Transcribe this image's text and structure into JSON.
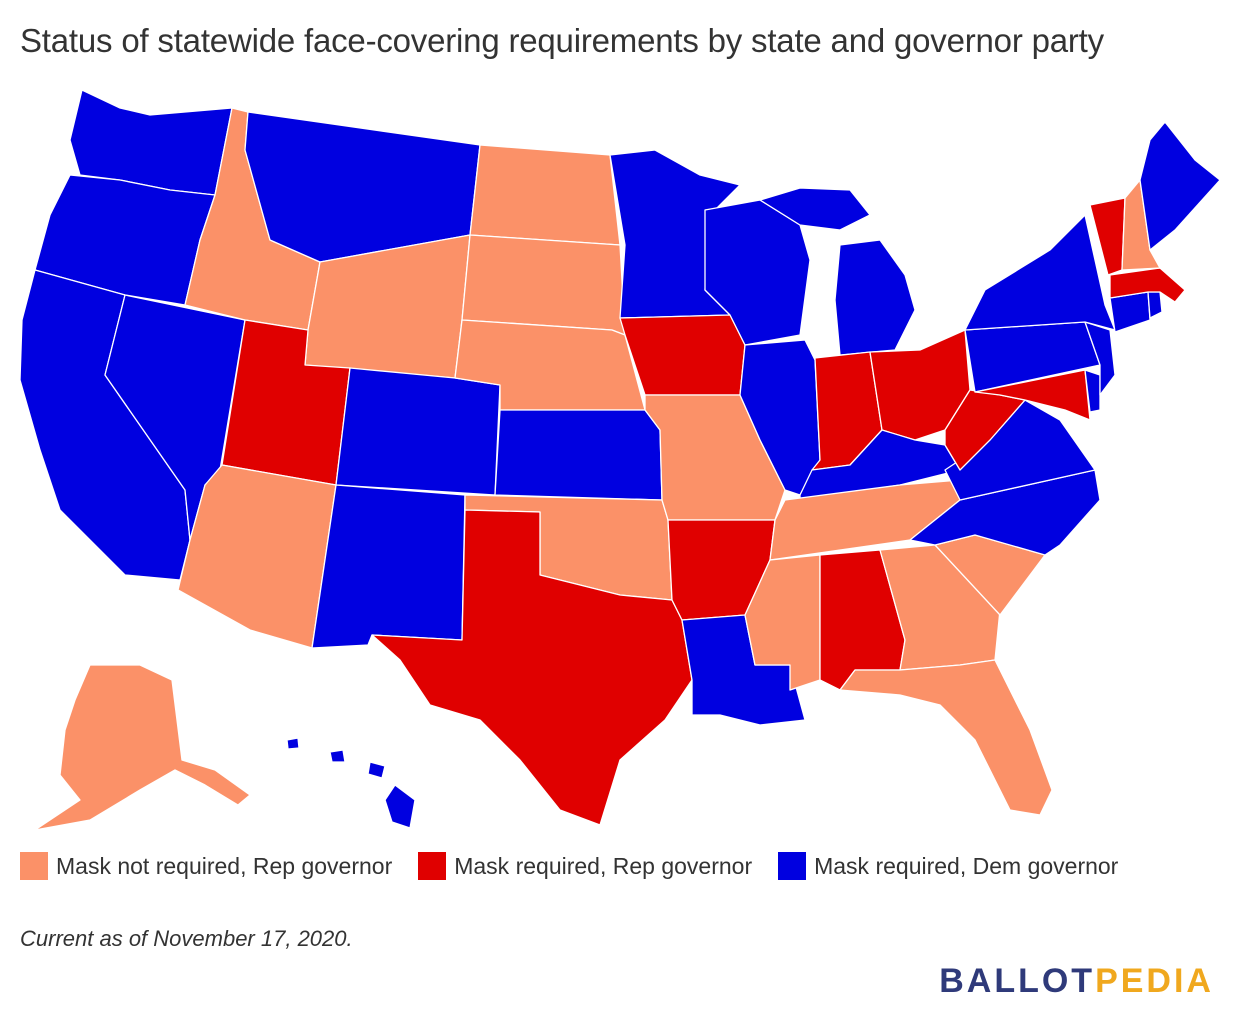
{
  "title": "Status of statewide face-covering requirements by state and governor party",
  "colors": {
    "not_required_rep": "#fb9168",
    "required_rep": "#e00000",
    "required_dem": "#0000e0",
    "logo_dark": "#2f3a7a",
    "logo_accent": "#f0a81e"
  },
  "legend": [
    {
      "label": "Mask not required, Rep governor",
      "color": "#fb9168"
    },
    {
      "label": "Mask required, Rep governor",
      "color": "#e00000"
    },
    {
      "label": "Mask required, Dem governor",
      "color": "#0000e0"
    }
  ],
  "note": "Current as of November 17, 2020.",
  "logo": {
    "part1": "BALLOT",
    "part2": "PEDIA"
  },
  "states": {
    "WA": "required_dem",
    "OR": "required_dem",
    "CA": "required_dem",
    "NV": "required_dem",
    "ID": "not_required_rep",
    "MT": "required_dem",
    "WY": "not_required_rep",
    "UT": "required_rep",
    "AZ": "not_required_rep",
    "CO": "required_dem",
    "NM": "required_dem",
    "ND": "not_required_rep",
    "SD": "not_required_rep",
    "NE": "not_required_rep",
    "KS": "required_dem",
    "OK": "not_required_rep",
    "TX": "required_rep",
    "MN": "required_dem",
    "IA": "required_rep",
    "MO": "not_required_rep",
    "AR": "required_rep",
    "LA": "required_dem",
    "WI": "required_dem",
    "IL": "required_dem",
    "MI": "required_dem",
    "IN": "required_rep",
    "OH": "required_rep",
    "KY": "required_dem",
    "TN": "not_required_rep",
    "MS": "not_required_rep",
    "AL": "required_rep",
    "GA": "not_required_rep",
    "FL": "not_required_rep",
    "SC": "not_required_rep",
    "NC": "required_dem",
    "VA": "required_dem",
    "WV": "required_rep",
    "MD": "required_rep",
    "DE": "required_dem",
    "NJ": "required_dem",
    "PA": "required_dem",
    "NY": "required_dem",
    "CT": "required_dem",
    "RI": "required_dem",
    "MA": "required_rep",
    "VT": "required_rep",
    "NH": "not_required_rep",
    "ME": "required_dem",
    "AK": "not_required_rep",
    "HI": "required_dem"
  }
}
